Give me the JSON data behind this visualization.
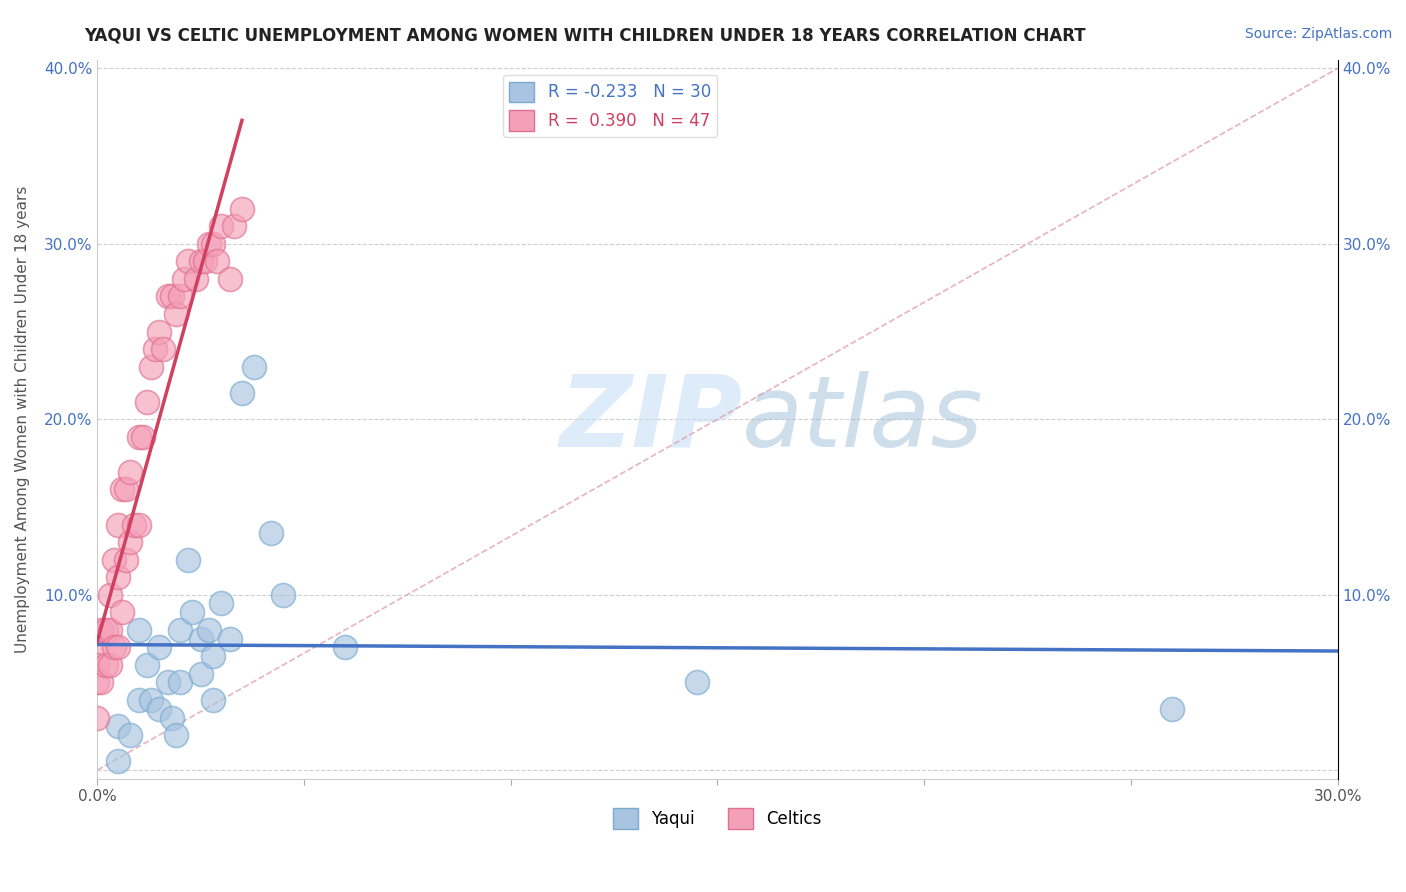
{
  "title": "YAQUI VS CELTIC UNEMPLOYMENT AMONG WOMEN WITH CHILDREN UNDER 18 YEARS CORRELATION CHART",
  "source": "Source: ZipAtlas.com",
  "ylabel": "Unemployment Among Women with Children Under 18 years",
  "xlabel": "",
  "xlim": [
    0.0,
    0.3
  ],
  "ylim": [
    -0.005,
    0.405
  ],
  "xticks": [
    0.0,
    0.05,
    0.1,
    0.15,
    0.2,
    0.25,
    0.3
  ],
  "yticks": [
    0.0,
    0.1,
    0.2,
    0.3,
    0.4
  ],
  "xticklabels": [
    "0.0%",
    "",
    "",
    "",
    "",
    "",
    "30.0%"
  ],
  "yticklabels_left": [
    "",
    "10.0%",
    "20.0%",
    "30.0%",
    "40.0%"
  ],
  "yticklabels_right": [
    "",
    "10.0%",
    "20.0%",
    "30.0%",
    "40.0%"
  ],
  "yaqui_color": "#a8c4e0",
  "yaqui_edge_color": "#7aaad0",
  "celtics_color": "#f4a0b8",
  "celtics_edge_color": "#e07090",
  "yaqui_line_color": "#4472c4",
  "celtics_line_color": "#d04060",
  "diag_line_color": "#e0a0b0",
  "legend_R_yaqui": "-0.233",
  "legend_N_yaqui": "30",
  "legend_R_celtics": "0.390",
  "legend_N_celtics": "47",
  "watermark_zip": "ZIP",
  "watermark_atlas": "atlas",
  "background_color": "#ffffff",
  "grid_color": "#d0d0d0",
  "yaqui_x": [
    0.005,
    0.005,
    0.008,
    0.01,
    0.01,
    0.012,
    0.013,
    0.015,
    0.015,
    0.017,
    0.018,
    0.019,
    0.02,
    0.02,
    0.022,
    0.023,
    0.025,
    0.025,
    0.027,
    0.028,
    0.028,
    0.03,
    0.032,
    0.035,
    0.038,
    0.042,
    0.045,
    0.06,
    0.145,
    0.26
  ],
  "yaqui_y": [
    0.005,
    0.025,
    0.02,
    0.08,
    0.04,
    0.06,
    0.04,
    0.035,
    0.07,
    0.05,
    0.03,
    0.02,
    0.08,
    0.05,
    0.12,
    0.09,
    0.075,
    0.055,
    0.08,
    0.065,
    0.04,
    0.095,
    0.075,
    0.215,
    0.23,
    0.135,
    0.1,
    0.07,
    0.05,
    0.035
  ],
  "celtics_x": [
    0.0,
    0.0,
    0.0,
    0.0,
    0.001,
    0.001,
    0.002,
    0.002,
    0.003,
    0.003,
    0.003,
    0.004,
    0.004,
    0.005,
    0.005,
    0.005,
    0.006,
    0.006,
    0.007,
    0.007,
    0.008,
    0.008,
    0.009,
    0.01,
    0.01,
    0.011,
    0.012,
    0.013,
    0.014,
    0.015,
    0.016,
    0.017,
    0.018,
    0.019,
    0.02,
    0.021,
    0.022,
    0.024,
    0.025,
    0.026,
    0.027,
    0.028,
    0.029,
    0.03,
    0.032,
    0.033,
    0.035
  ],
  "celtics_y": [
    0.07,
    0.06,
    0.05,
    0.03,
    0.08,
    0.05,
    0.08,
    0.06,
    0.1,
    0.08,
    0.06,
    0.12,
    0.07,
    0.14,
    0.11,
    0.07,
    0.16,
    0.09,
    0.16,
    0.12,
    0.17,
    0.13,
    0.14,
    0.19,
    0.14,
    0.19,
    0.21,
    0.23,
    0.24,
    0.25,
    0.24,
    0.27,
    0.27,
    0.26,
    0.27,
    0.28,
    0.29,
    0.28,
    0.29,
    0.29,
    0.3,
    0.3,
    0.29,
    0.31,
    0.28,
    0.31,
    0.32
  ]
}
